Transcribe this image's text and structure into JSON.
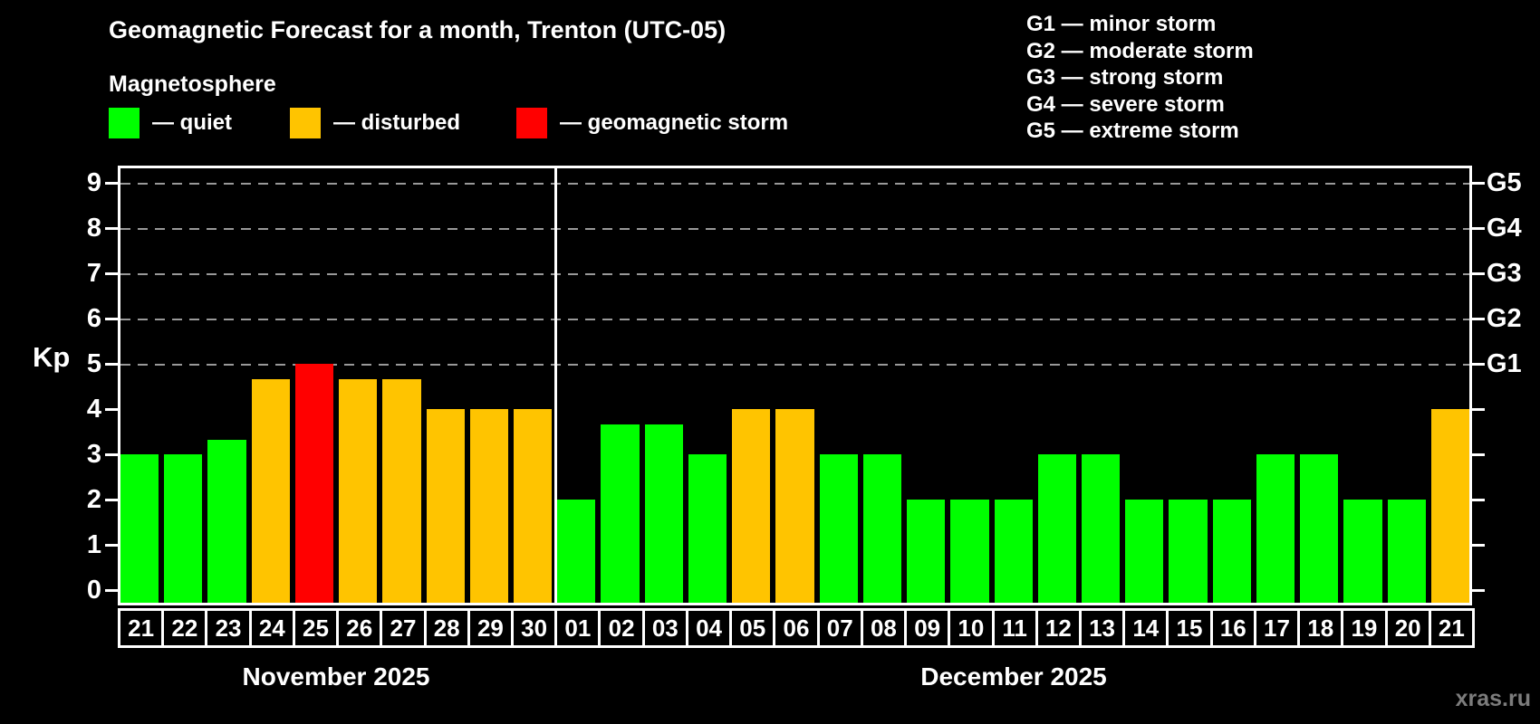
{
  "title": "Geomagnetic Forecast for a month, Trenton (UTC-05)",
  "subtitle": "Magnetosphere",
  "legend": {
    "items": [
      {
        "label": "— quiet",
        "status": "quiet"
      },
      {
        "label": "— disturbed",
        "status": "disturbed"
      },
      {
        "label": "— geomagnetic storm",
        "status": "storm"
      }
    ]
  },
  "storm_scale_legend": [
    "G1 — minor storm",
    "G2 — moderate storm",
    "G3 — strong storm",
    "G4 — severe storm",
    "G5 — extreme storm"
  ],
  "colors": {
    "quiet": "#00ff00",
    "disturbed": "#ffc400",
    "storm": "#ff0000",
    "grid": "#999999",
    "frame": "#ffffff",
    "text": "#ffffff",
    "watermark": "#7c7c7c",
    "background": "#000000"
  },
  "watermark": "xras.ru",
  "chart_data": {
    "type": "bar",
    "title": "Geomagnetic Forecast for a month, Trenton (UTC-05)",
    "ylabel": "Kp",
    "xlabel": "",
    "ylim": [
      -0.34,
      9.4
    ],
    "yticks": [
      0,
      1,
      2,
      3,
      4,
      5,
      6,
      7,
      8,
      9
    ],
    "gridlines_kp": [
      5,
      6,
      7,
      8,
      9
    ],
    "grid": "dashed horizontal at Kp 5-9",
    "right_axis_labels": [
      {
        "label": "G1",
        "kp": 5
      },
      {
        "label": "G2",
        "kp": 6
      },
      {
        "label": "G3",
        "kp": 7
      },
      {
        "label": "G4",
        "kp": 8
      },
      {
        "label": "G5",
        "kp": 9
      }
    ],
    "months": [
      {
        "label": "November 2025",
        "days": 10
      },
      {
        "label": "December 2025",
        "days": 21
      }
    ],
    "categories": [
      "21",
      "22",
      "23",
      "24",
      "25",
      "26",
      "27",
      "28",
      "29",
      "30",
      "01",
      "02",
      "03",
      "04",
      "05",
      "06",
      "07",
      "08",
      "09",
      "10",
      "11",
      "12",
      "13",
      "14",
      "15",
      "16",
      "17",
      "18",
      "19",
      "20",
      "21"
    ],
    "values": [
      3,
      3,
      3.33,
      4.67,
      5,
      4.67,
      4.67,
      4,
      4,
      4,
      2,
      3.67,
      3.67,
      3,
      4,
      4,
      3,
      3,
      2,
      2,
      2,
      3,
      3,
      2,
      2,
      2,
      3,
      3,
      2,
      2,
      4
    ],
    "statuses": [
      "quiet",
      "quiet",
      "quiet",
      "disturbed",
      "storm",
      "disturbed",
      "disturbed",
      "disturbed",
      "disturbed",
      "disturbed",
      "quiet",
      "quiet",
      "quiet",
      "quiet",
      "disturbed",
      "disturbed",
      "quiet",
      "quiet",
      "quiet",
      "quiet",
      "quiet",
      "quiet",
      "quiet",
      "quiet",
      "quiet",
      "quiet",
      "quiet",
      "quiet",
      "quiet",
      "quiet",
      "disturbed"
    ]
  }
}
